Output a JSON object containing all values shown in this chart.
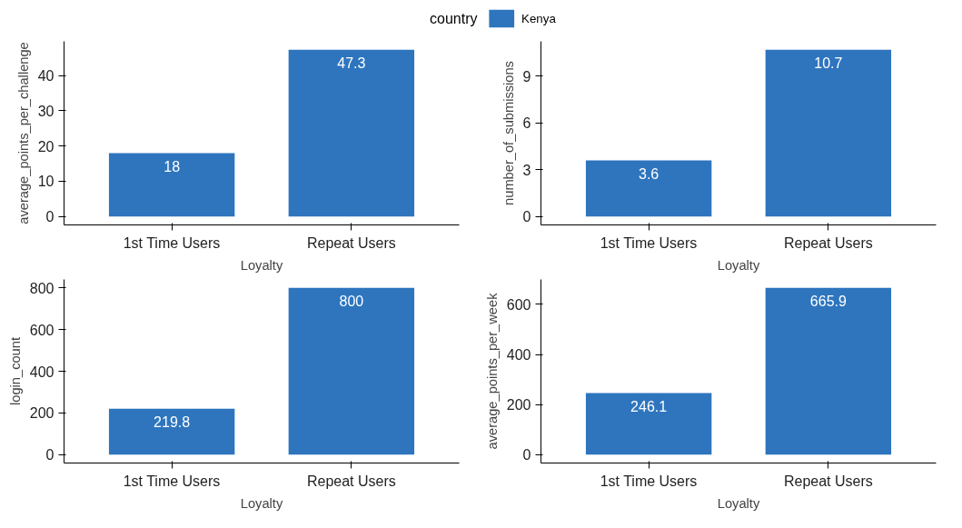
{
  "chart_data": [
    {
      "type": "bar",
      "categories": [
        "1st Time Users",
        "Repeat Users"
      ],
      "xlabel": "Loyalty",
      "ylabel": "average_points_per_challenge",
      "ylim": [
        -2.365,
        49.665
      ],
      "yticks": [
        0,
        10,
        20,
        30,
        40
      ],
      "data_labels": true,
      "legend": "top",
      "legend_title": "country",
      "grid": false,
      "series": [
        {
          "name": "Kenya",
          "color": "#2e75be",
          "values": [
            18,
            47.3
          ]
        }
      ]
    },
    {
      "type": "bar",
      "categories": [
        "1st Time Users",
        "Repeat Users"
      ],
      "xlabel": "Loyalty",
      "ylabel": "number_of_submissions",
      "ylim": [
        -0.535,
        11.235
      ],
      "yticks": [
        0,
        3,
        6,
        9
      ],
      "data_labels": true,
      "grid": false,
      "series": [
        {
          "color": "#2e75be",
          "values": [
            3.6,
            10.7
          ]
        }
      ]
    },
    {
      "type": "bar",
      "categories": [
        "1st Time Users",
        "Repeat Users"
      ],
      "xlabel": "Loyalty",
      "ylabel": "login_count",
      "ylim": [
        -40,
        840
      ],
      "yticks": [
        0,
        200,
        400,
        600,
        800
      ],
      "data_labels": true,
      "grid": false,
      "series": [
        {
          "color": "#2e75be",
          "values": [
            219.8,
            800
          ]
        }
      ]
    },
    {
      "type": "bar",
      "categories": [
        "1st Time Users",
        "Repeat Users"
      ],
      "xlabel": "Loyalty",
      "ylabel": "average_points_per_week",
      "ylim": [
        -33.3,
        699.2
      ],
      "yticks": [
        0,
        200,
        400,
        600
      ],
      "data_labels": true,
      "grid": false,
      "series": [
        {
          "color": "#2e75be",
          "values": [
            246.1,
            665.9
          ]
        }
      ]
    }
  ]
}
